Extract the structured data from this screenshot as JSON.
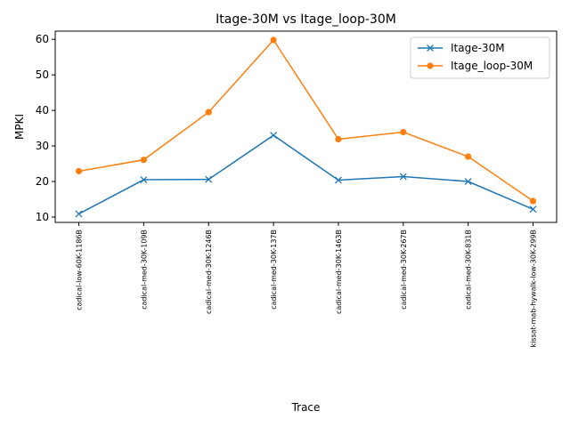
{
  "chart_data": {
    "type": "line",
    "title": "Itage-30M vs Itage_loop-30M",
    "xlabel": "Trace",
    "ylabel": "MPKI",
    "categories": [
      "cadical-low-60K-1186B",
      "cadical-med-30K-109B",
      "cadical-med-30K-1246B",
      "cadical-med-30K-137B",
      "cadical-med-30K-1463B",
      "cadical-med-30K-267B",
      "cadical-med-30K-831B",
      "kissat-mab-hywalk-low-30K-299B"
    ],
    "series": [
      {
        "name": "Itage-30M",
        "color": "#1f77b4",
        "marker": "x",
        "values": [
          10.9,
          20.5,
          20.6,
          33.0,
          20.4,
          21.4,
          20.0,
          12.2
        ]
      },
      {
        "name": "Itage_loop-30M",
        "color": "#ff7f0e",
        "marker": "circle",
        "values": [
          22.9,
          26.1,
          39.5,
          59.8,
          31.9,
          33.9,
          27.0,
          14.5
        ]
      }
    ],
    "ylim": [
      8.5,
      62.3
    ],
    "yticks": [
      10,
      20,
      30,
      40,
      50,
      60
    ],
    "grid": false,
    "legend_position": "top-right"
  }
}
